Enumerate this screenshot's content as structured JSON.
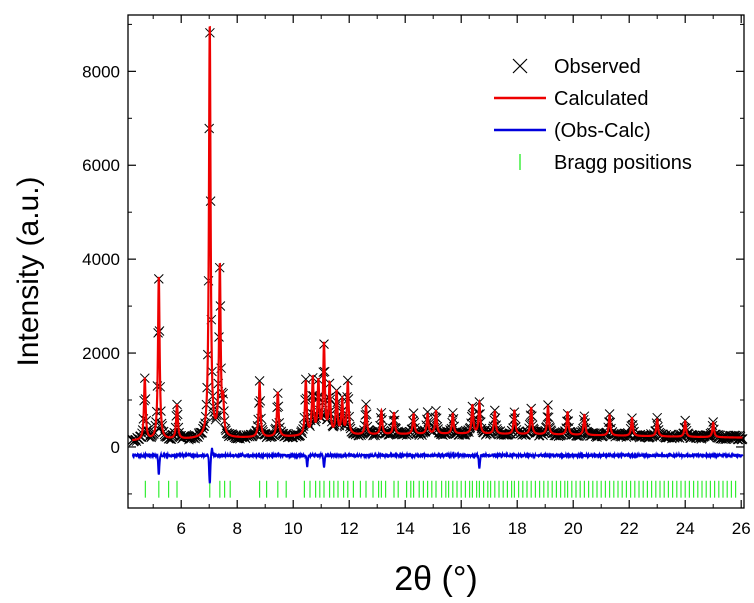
{
  "chart_data": {
    "type": "line",
    "xlabel": "2θ (°)",
    "ylabel": "Intensity (a.u.)",
    "xlim": [
      4.1,
      26.1
    ],
    "ylim": [
      -1300,
      9200
    ],
    "xticks": [
      6,
      8,
      10,
      12,
      14,
      16,
      18,
      20,
      22,
      24,
      26
    ],
    "yticks": [
      0,
      2000,
      4000,
      6000,
      8000
    ],
    "grid": false,
    "legend_position": "top-right",
    "legend": [
      "Observed",
      "Calculated",
      "(Obs-Calc)",
      "Bragg positions"
    ],
    "colors": {
      "observed": "#000000",
      "calculated": "#ee0000",
      "difference": "#0000dd",
      "bragg": "#33ee33"
    },
    "background": {
      "x": [
        4.2,
        6,
        8,
        10,
        12,
        14,
        16,
        18,
        20,
        22,
        24,
        26
      ],
      "y": [
        130,
        160,
        190,
        220,
        250,
        270,
        280,
        270,
        255,
        235,
        215,
        200
      ]
    },
    "peaks": [
      {
        "x": 4.7,
        "y": 1300,
        "w": 0.035
      },
      {
        "x": 5.2,
        "y": 3450,
        "w": 0.035
      },
      {
        "x": 5.85,
        "y": 730,
        "w": 0.035
      },
      {
        "x": 7.02,
        "y": 8750,
        "w": 0.035
      },
      {
        "x": 7.38,
        "y": 3600,
        "w": 0.035
      },
      {
        "x": 7.5,
        "y": 650,
        "w": 0.03
      },
      {
        "x": 8.8,
        "y": 1150,
        "w": 0.035
      },
      {
        "x": 9.45,
        "y": 950,
        "w": 0.035
      },
      {
        "x": 10.45,
        "y": 1150,
        "w": 0.035
      },
      {
        "x": 10.7,
        "y": 1200,
        "w": 0.035
      },
      {
        "x": 10.9,
        "y": 1100,
        "w": 0.035
      },
      {
        "x": 11.1,
        "y": 1900,
        "w": 0.035
      },
      {
        "x": 11.3,
        "y": 1050,
        "w": 0.035
      },
      {
        "x": 11.55,
        "y": 900,
        "w": 0.035
      },
      {
        "x": 11.75,
        "y": 700,
        "w": 0.035
      },
      {
        "x": 11.95,
        "y": 1100,
        "w": 0.035
      },
      {
        "x": 12.6,
        "y": 600,
        "w": 0.035
      },
      {
        "x": 13.15,
        "y": 500,
        "w": 0.035
      },
      {
        "x": 13.6,
        "y": 450,
        "w": 0.035
      },
      {
        "x": 14.3,
        "y": 420,
        "w": 0.035
      },
      {
        "x": 14.8,
        "y": 420,
        "w": 0.035
      },
      {
        "x": 15.1,
        "y": 480,
        "w": 0.035
      },
      {
        "x": 15.7,
        "y": 420,
        "w": 0.035
      },
      {
        "x": 16.4,
        "y": 600,
        "w": 0.035
      },
      {
        "x": 16.65,
        "y": 650,
        "w": 0.035
      },
      {
        "x": 17.2,
        "y": 470,
        "w": 0.035
      },
      {
        "x": 17.9,
        "y": 500,
        "w": 0.035
      },
      {
        "x": 18.5,
        "y": 560,
        "w": 0.035
      },
      {
        "x": 19.1,
        "y": 600,
        "w": 0.035
      },
      {
        "x": 19.8,
        "y": 480,
        "w": 0.035
      },
      {
        "x": 20.4,
        "y": 430,
        "w": 0.035
      },
      {
        "x": 21.3,
        "y": 430,
        "w": 0.035
      },
      {
        "x": 22.1,
        "y": 380,
        "w": 0.035
      },
      {
        "x": 23.0,
        "y": 360,
        "w": 0.035
      },
      {
        "x": 24.0,
        "y": 330,
        "w": 0.035
      },
      {
        "x": 25.0,
        "y": 310,
        "w": 0.035
      }
    ],
    "difference_offset": -180,
    "difference_spikes": [
      {
        "x": 5.2,
        "y": -400
      },
      {
        "x": 7.02,
        "y": -600
      },
      {
        "x": 7.1,
        "y": 150
      },
      {
        "x": 10.5,
        "y": -230
      },
      {
        "x": 11.1,
        "y": -250
      },
      {
        "x": 16.65,
        "y": -280
      }
    ],
    "bragg_level": -900,
    "bragg_positions": [
      4.72,
      5.2,
      5.55,
      5.85,
      7.02,
      7.38,
      7.55,
      7.75,
      8.8,
      9.05,
      9.45,
      9.75,
      10.4,
      10.6,
      10.8,
      10.95,
      11.1,
      11.3,
      11.45,
      11.6,
      11.8,
      11.95,
      12.15,
      12.4,
      12.6,
      12.85,
      13.05,
      13.15,
      13.3,
      13.6,
      13.75,
      14.05,
      14.2,
      14.3,
      14.5,
      14.65,
      14.8,
      14.95,
      15.1,
      15.3,
      15.45,
      15.55,
      15.7,
      15.85,
      16.0,
      16.15,
      16.3,
      16.4,
      16.55,
      16.65,
      16.8,
      16.95,
      17.05,
      17.2,
      17.35,
      17.5,
      17.65,
      17.8,
      17.9,
      18.05,
      18.2,
      18.35,
      18.5,
      18.65,
      18.8,
      18.95,
      19.1,
      19.25,
      19.4,
      19.55,
      19.7,
      19.8,
      19.95,
      20.1,
      20.25,
      20.4,
      20.55,
      20.7,
      20.85,
      21.0,
      21.15,
      21.3,
      21.45,
      21.6,
      21.75,
      21.9,
      22.05,
      22.2,
      22.35,
      22.5,
      22.65,
      22.8,
      22.95,
      23.1,
      23.25,
      23.4,
      23.55,
      23.7,
      23.85,
      24.0,
      24.15,
      24.3,
      24.45,
      24.6,
      24.75,
      24.9,
      25.05,
      25.2,
      25.35,
      25.5,
      25.65,
      25.8
    ]
  }
}
